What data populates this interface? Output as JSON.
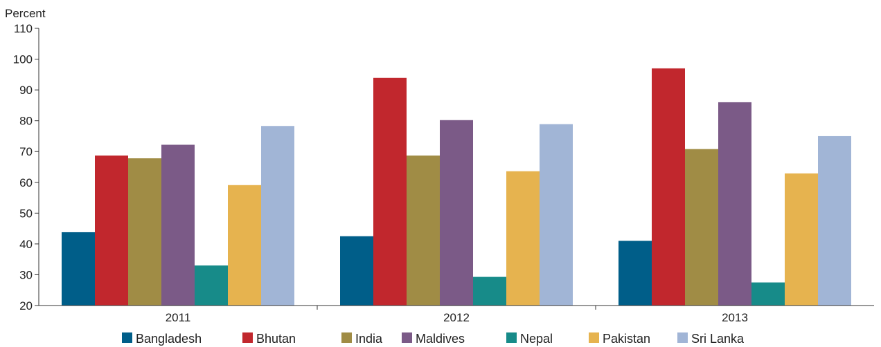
{
  "chart_data": {
    "type": "bar",
    "title": "",
    "xlabel": "",
    "ylabel": "Percent",
    "ylim": [
      20,
      110
    ],
    "yticks": [
      20,
      30,
      40,
      50,
      60,
      70,
      80,
      90,
      100,
      110
    ],
    "grid": false,
    "legend_position": "bottom",
    "categories": [
      "2011",
      "2012",
      "2013"
    ],
    "series": [
      {
        "name": "Bangladesh",
        "color": "#005e89",
        "values": [
          43.8,
          42.5,
          41.0
        ]
      },
      {
        "name": "Bhutan",
        "color": "#c1272d",
        "values": [
          68.7,
          93.9,
          97.0
        ]
      },
      {
        "name": "India",
        "color": "#a08c45",
        "values": [
          67.8,
          68.7,
          70.8
        ]
      },
      {
        "name": "Maldives",
        "color": "#7b5a87",
        "values": [
          72.2,
          80.2,
          86.0
        ]
      },
      {
        "name": "Nepal",
        "color": "#178b89",
        "values": [
          33.0,
          29.3,
          27.5
        ]
      },
      {
        "name": "Pakistan",
        "color": "#e6b34f",
        "values": [
          59.1,
          63.6,
          62.9
        ]
      },
      {
        "name": "Sri Lanka",
        "color": "#a1b5d6",
        "values": [
          78.3,
          78.9,
          75.0
        ]
      }
    ]
  }
}
